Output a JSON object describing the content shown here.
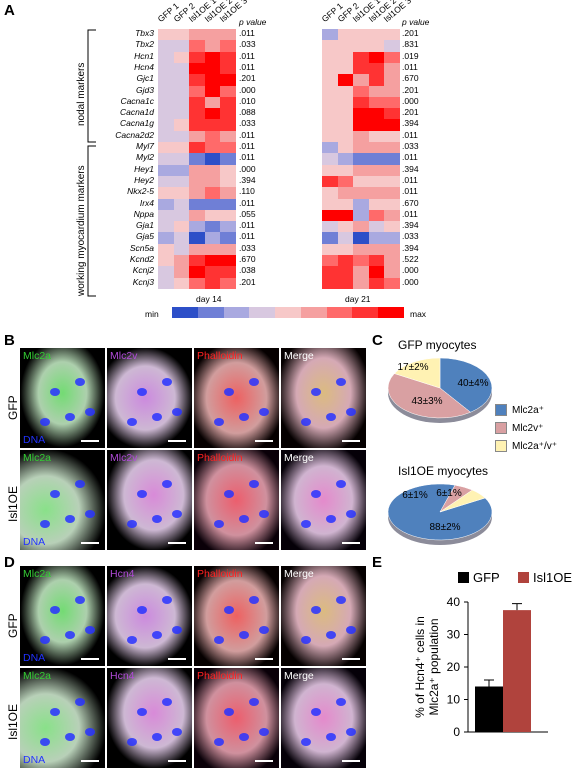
{
  "panels": {
    "A": "A",
    "B": "B",
    "C": "C",
    "D": "D",
    "E": "E"
  },
  "heatmap": {
    "columns": [
      "GFP 1",
      "GFP 2",
      "Isl1OE 1",
      "Isl1OE 2",
      "Isl1OE 3"
    ],
    "pvalue_header": "p value",
    "genes": [
      "Tbx3",
      "Tbx2",
      "Hcn1",
      "Hcn4",
      "Gjc1",
      "Gjd3",
      "Cacna1c",
      "Cacna1d",
      "Cacna1g",
      "Cacna2d2",
      "Myl7",
      "Myl2",
      "Hey1",
      "Hey2",
      "Nkx2-5",
      "Irx4",
      "Nppa",
      "Gja1",
      "Gja5",
      "Scn5a",
      "Kcnd2",
      "Kcnj2",
      "Kcnj3"
    ],
    "group_labels": {
      "nodal": "nodal markers",
      "working": "working myocardium markers"
    },
    "day14": {
      "label": "day 14",
      "pvalues": [
        ".011",
        ".033",
        ".011",
        ".011",
        ".201",
        ".000",
        ".010",
        ".088",
        ".033",
        ".011",
        ".011",
        ".011",
        ".000",
        ".394",
        ".110",
        ".011",
        ".055",
        ".011",
        ".011",
        ".033",
        ".670",
        ".038",
        ".201"
      ],
      "levels": [
        [
          4,
          4,
          3,
          3,
          3
        ],
        [
          5,
          5,
          2,
          3,
          2
        ],
        [
          5,
          4,
          1,
          0,
          1
        ],
        [
          5,
          5,
          0,
          0,
          1
        ],
        [
          5,
          5,
          1,
          0,
          0
        ],
        [
          5,
          5,
          2,
          0,
          2
        ],
        [
          5,
          5,
          1,
          3,
          1
        ],
        [
          5,
          5,
          1,
          0,
          1
        ],
        [
          5,
          4,
          1,
          1,
          1
        ],
        [
          5,
          5,
          3,
          2,
          3
        ],
        [
          4,
          4,
          1,
          2,
          2
        ],
        [
          5,
          5,
          7,
          8,
          7
        ],
        [
          6,
          6,
          3,
          3,
          4
        ],
        [
          5,
          5,
          3,
          3,
          4
        ],
        [
          4,
          4,
          3,
          2,
          3
        ],
        [
          6,
          5,
          7,
          7,
          7
        ],
        [
          5,
          5,
          3,
          4,
          4
        ],
        [
          5,
          4,
          6,
          7,
          6
        ],
        [
          6,
          5,
          8,
          6,
          7
        ],
        [
          4,
          5,
          3,
          3,
          3
        ],
        [
          4,
          3,
          1,
          0,
          0
        ],
        [
          5,
          3,
          0,
          1,
          1
        ],
        [
          5,
          4,
          2,
          1,
          2
        ]
      ]
    },
    "day21": {
      "label": "day 21",
      "pvalues": [
        ".201",
        ".831",
        ".019",
        ".011",
        ".670",
        ".201",
        ".000",
        ".201",
        ".394",
        ".011",
        ".033",
        ".011",
        ".394",
        ".011",
        ".011",
        ".670",
        ".011",
        ".394",
        ".033",
        ".394",
        ".522",
        ".000",
        ".000"
      ],
      "levels": [
        [
          6,
          4,
          4,
          4,
          4
        ],
        [
          4,
          4,
          4,
          4,
          5
        ],
        [
          4,
          4,
          1,
          0,
          2
        ],
        [
          4,
          4,
          1,
          1,
          3
        ],
        [
          4,
          0,
          3,
          1,
          3
        ],
        [
          4,
          4,
          2,
          3,
          3
        ],
        [
          4,
          4,
          1,
          2,
          2
        ],
        [
          4,
          4,
          0,
          0,
          1
        ],
        [
          4,
          4,
          0,
          0,
          0
        ],
        [
          4,
          4,
          3,
          4,
          4
        ],
        [
          6,
          4,
          3,
          3,
          3
        ],
        [
          5,
          6,
          7,
          7,
          7
        ],
        [
          4,
          4,
          3,
          3,
          3
        ],
        [
          1,
          2,
          4,
          4,
          4
        ],
        [
          4,
          3,
          3,
          3,
          3
        ],
        [
          4,
          4,
          6,
          4,
          4
        ],
        [
          0,
          0,
          6,
          2,
          3
        ],
        [
          5,
          4,
          3,
          5,
          4
        ],
        [
          7,
          5,
          8,
          6,
          6
        ],
        [
          4,
          4,
          3,
          3,
          3
        ],
        [
          2,
          1,
          2,
          1,
          3
        ],
        [
          1,
          1,
          3,
          0,
          3
        ],
        [
          1,
          1,
          3,
          1,
          2
        ]
      ]
    },
    "scale": {
      "min": "min",
      "max": "max",
      "colors": [
        "#ff0000",
        "#ff3333",
        "#ff6a6a",
        "#f5a0a0",
        "#f7c8c8",
        "#d8c8e0",
        "#a9a9e0",
        "#6f7fd6",
        "#2d4fc8"
      ]
    }
  },
  "panelB": {
    "rows": [
      "GFP",
      "Isl1OE"
    ],
    "columns": [
      {
        "label": "Mlc2a",
        "color": "#33cc33"
      },
      {
        "label": "Mlc2v",
        "color": "#b04ad8"
      },
      {
        "label": "Phalloidin",
        "color": "#ff2222"
      },
      {
        "label": "Merge",
        "color": "#ffffff"
      }
    ],
    "dna": "DNA"
  },
  "panelC": {
    "gfp_title": "GFP myocytes",
    "isl_title": "Isl1OE myocytes",
    "gfp": [
      {
        "label": "40±4%",
        "value": 40,
        "color": "#4f81bd"
      },
      {
        "label": "43±3%",
        "value": 43,
        "color": "#d9a0a2"
      },
      {
        "label": "17±2%",
        "value": 17,
        "color": "#fff2b3"
      }
    ],
    "isl": [
      {
        "label": "88±2%",
        "value": 88,
        "color": "#4f81bd"
      },
      {
        "label": "6±1%",
        "value": 6,
        "color": "#d9a0a2"
      },
      {
        "label": "6±1%",
        "value": 6,
        "color": "#fff2b3"
      }
    ],
    "legend": [
      "Mlc2a⁺",
      "Mlc2v⁺",
      "Mlc2a⁺/v⁺"
    ]
  },
  "panelD": {
    "rows": [
      "GFP",
      "Isl1OE"
    ],
    "columns": [
      {
        "label": "Mlc2a",
        "color": "#33cc33"
      },
      {
        "label": "Hcn4",
        "color": "#b04ad8"
      },
      {
        "label": "Phalloidin",
        "color": "#ff2222"
      },
      {
        "label": "Merge",
        "color": "#ffffff"
      }
    ],
    "dna": "DNA"
  },
  "chart_data": {
    "type": "bar",
    "categories": [
      "GFP",
      "Isl1OE"
    ],
    "values": [
      14,
      37.5
    ],
    "errors": [
      2,
      2
    ],
    "colors": [
      "#000000",
      "#b0433d"
    ],
    "ylabel": "% of Hcn4⁺ cells in Mlc2a⁺ population",
    "ylim": [
      0,
      40
    ],
    "yticks": [
      "0",
      "10",
      "20",
      "30",
      "40"
    ],
    "legend": [
      "GFP",
      "Isl1OE"
    ]
  }
}
